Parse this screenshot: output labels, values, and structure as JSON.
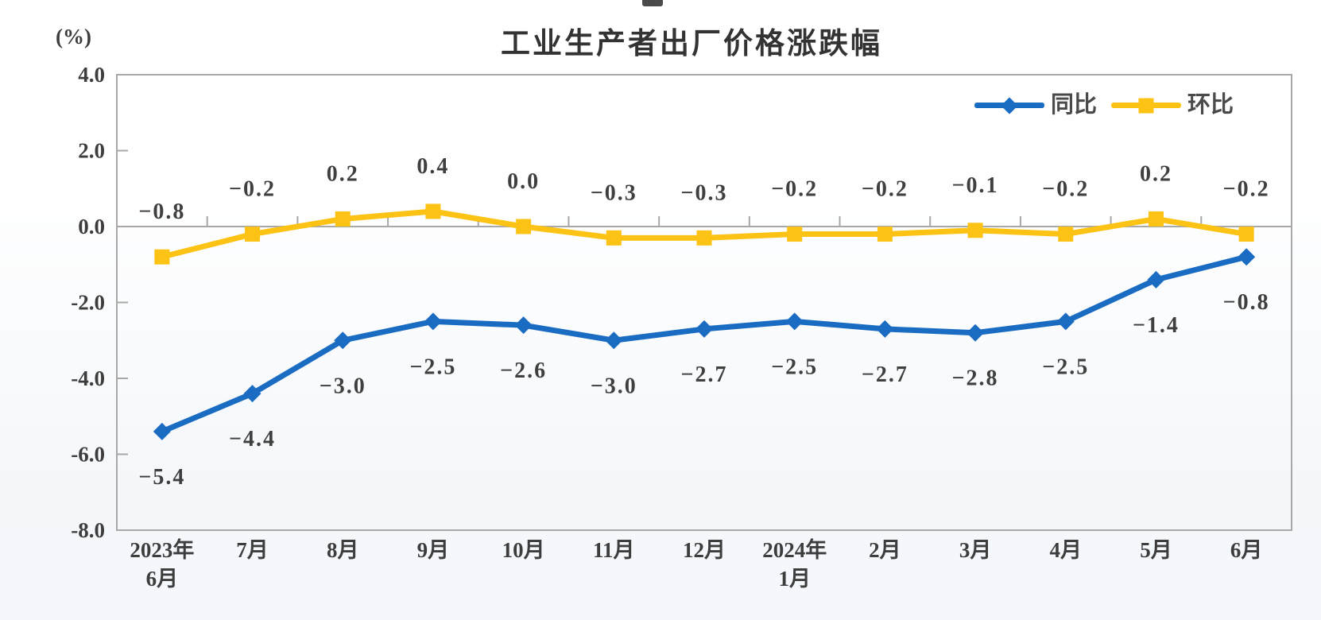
{
  "chart_data": {
    "type": "line",
    "title": "工业生产者出厂价格涨跌幅",
    "unit_label": "(%)",
    "categories": [
      "2023年\n6月",
      "7月",
      "8月",
      "9月",
      "10月",
      "11月",
      "12月",
      "2024年\n1月",
      "2月",
      "3月",
      "4月",
      "5月",
      "6月"
    ],
    "y_axis": {
      "min": -8.0,
      "max": 4.0,
      "step": 2.0,
      "tick_labels": [
        "4.0",
        "2.0",
        "0.0",
        "-2.0",
        "-4.0",
        "-6.0",
        "-8.0"
      ]
    },
    "grid": "zero-baseline-only",
    "legend_position": "top-right-inside",
    "series": [
      {
        "name": "同比",
        "color": "#1a6cc2",
        "marker": "diamond",
        "label_position": "below",
        "values": [
          -5.4,
          -4.4,
          -3.0,
          -2.5,
          -2.6,
          -3.0,
          -2.7,
          -2.5,
          -2.7,
          -2.8,
          -2.5,
          -1.4,
          -0.8
        ]
      },
      {
        "name": "环比",
        "color": "#fcc214",
        "marker": "square",
        "label_position": "above",
        "values": [
          -0.8,
          -0.2,
          0.2,
          0.4,
          0.0,
          -0.3,
          -0.3,
          -0.2,
          -0.2,
          -0.1,
          -0.2,
          0.2,
          -0.2
        ]
      }
    ],
    "colors": {
      "axis": "#a8a8a8",
      "label_text": "#3f3f3f",
      "tick_text": "#3d3d3d",
      "title_text": "#333333"
    }
  }
}
